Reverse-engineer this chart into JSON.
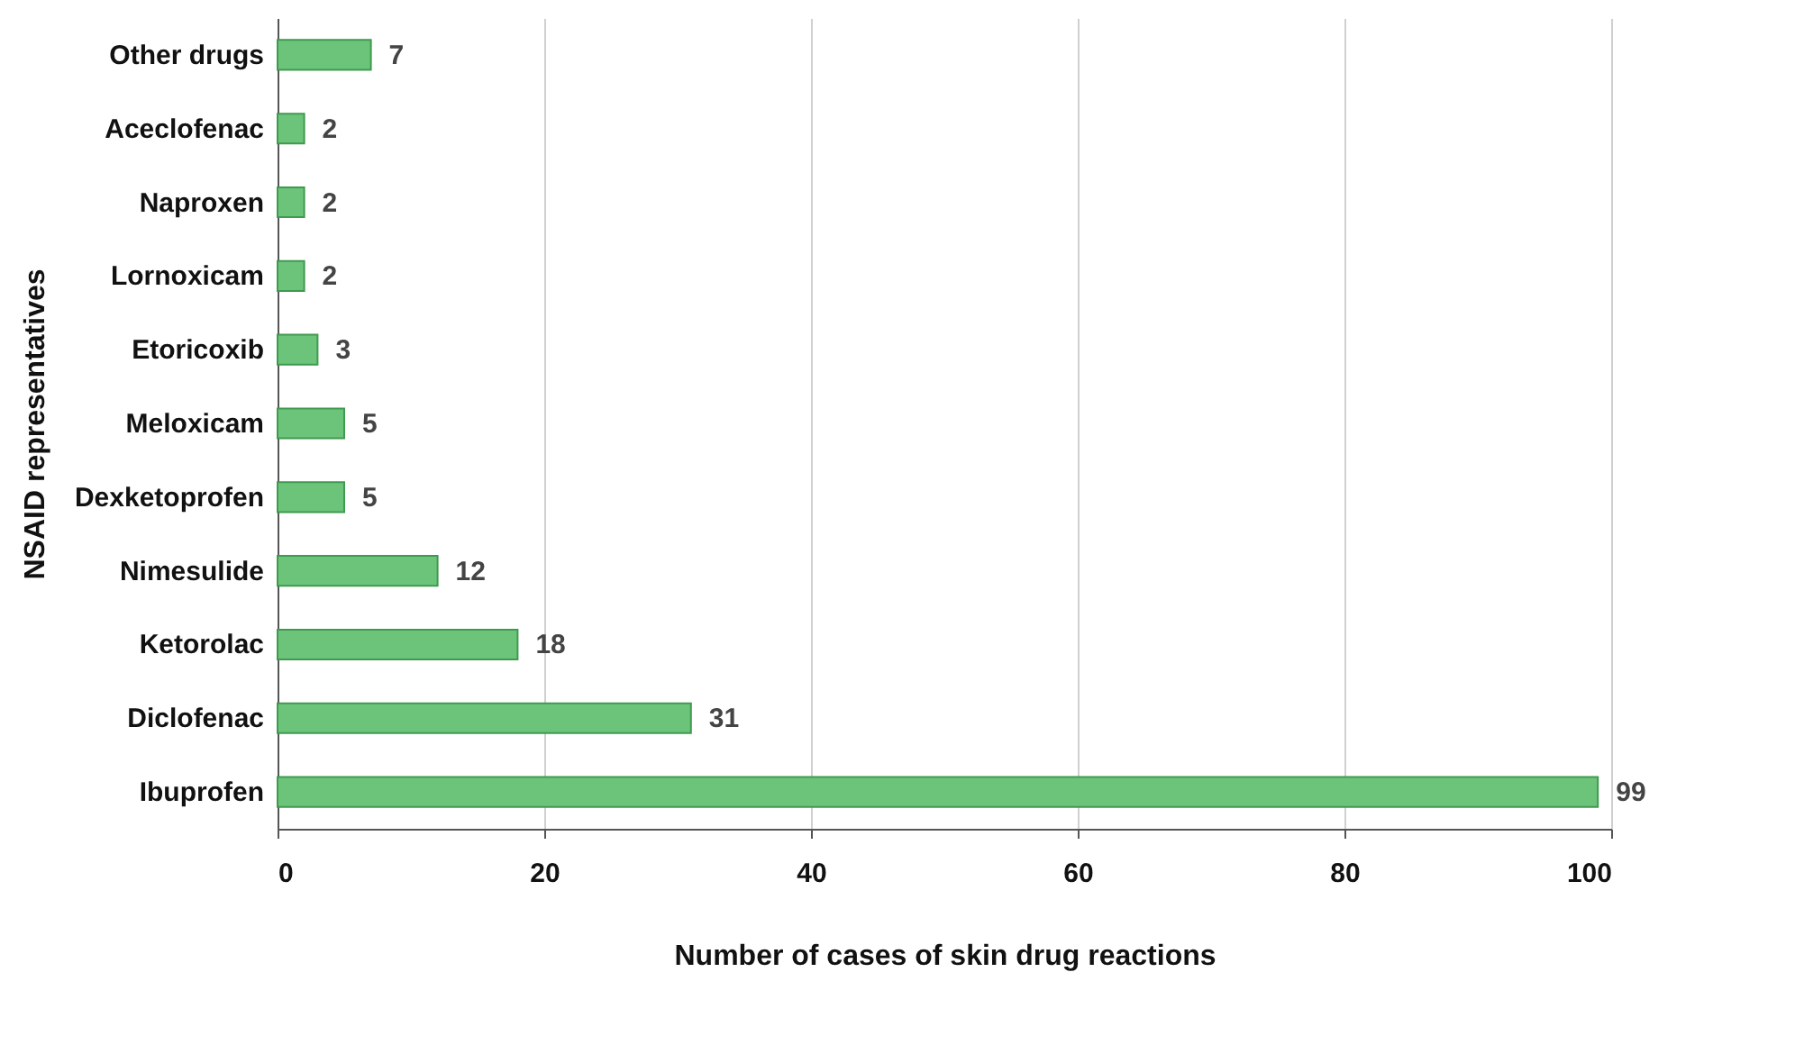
{
  "chart_data": {
    "type": "bar",
    "orientation": "horizontal",
    "xlabel": "Number of cases of skin drug reactions",
    "ylabel": "NSAID representatives",
    "categories": [
      "Other drugs",
      "Aceclofenac",
      "Naproxen",
      "Lornoxicam",
      "Etoricoxib",
      "Meloxicam",
      "Dexketoprofen",
      "Nimesulide",
      "Ketorolac",
      "Diclofenac",
      "Ibuprofen"
    ],
    "values": [
      7,
      2,
      2,
      2,
      3,
      5,
      5,
      12,
      18,
      31,
      99
    ],
    "color": "#6cc47a",
    "xlim": [
      0,
      100
    ],
    "xticks": [
      0,
      20,
      40,
      60,
      80,
      100
    ],
    "grid": "x",
    "data_labels": true
  }
}
